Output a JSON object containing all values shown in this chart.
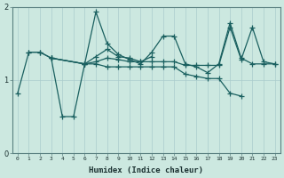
{
  "xlabel": "Humidex (Indice chaleur)",
  "x_labels": [
    "0",
    "1",
    "2",
    "3",
    "4",
    "5",
    "6",
    "7",
    "8",
    "9",
    "10",
    "11",
    "12",
    "13",
    "14",
    "15",
    "16",
    "17",
    "18",
    "19",
    "20",
    "21",
    "22",
    "23"
  ],
  "ylim": [
    0,
    2
  ],
  "yticks": [
    0,
    1,
    2
  ],
  "background_color": "#cce8e0",
  "grid_color": "#aacccc",
  "line_color": "#1a6060",
  "series": [
    {
      "x": [
        0,
        1,
        2,
        3,
        4,
        5,
        6,
        7,
        8,
        9,
        10,
        11,
        12,
        13,
        14,
        15,
        16,
        17,
        18,
        19,
        20,
        21,
        22,
        23
      ],
      "y": [
        0.82,
        1.38,
        1.38,
        1.3,
        0.5,
        0.5,
        1.22,
        1.93,
        1.5,
        1.35,
        1.28,
        1.22,
        1.38,
        1.6,
        1.6,
        1.22,
        1.18,
        1.1,
        1.22,
        1.78,
        1.3,
        1.22,
        1.22,
        1.22
      ]
    },
    {
      "x": [
        1,
        2,
        3,
        6,
        7,
        8,
        9,
        10,
        11,
        12
      ],
      "y": [
        1.38,
        1.38,
        1.3,
        1.22,
        1.32,
        1.42,
        1.32,
        1.3,
        1.25,
        1.32
      ]
    },
    {
      "x": [
        3,
        6,
        7,
        8,
        9,
        10,
        11,
        12,
        13,
        14,
        15,
        16,
        17,
        18,
        19,
        20
      ],
      "y": [
        1.3,
        1.22,
        1.22,
        1.18,
        1.18,
        1.18,
        1.18,
        1.18,
        1.18,
        1.18,
        1.08,
        1.05,
        1.02,
        1.02,
        0.82,
        0.78
      ]
    },
    {
      "x": [
        3,
        6,
        7,
        8,
        9,
        10,
        11,
        12,
        13,
        14,
        15,
        16,
        17,
        18,
        19,
        20,
        21,
        22,
        23
      ],
      "y": [
        1.3,
        1.22,
        1.25,
        1.3,
        1.28,
        1.25,
        1.25,
        1.25,
        1.25,
        1.25,
        1.2,
        1.2,
        1.2,
        1.2,
        1.72,
        1.28,
        1.72,
        1.25,
        1.22
      ]
    }
  ]
}
